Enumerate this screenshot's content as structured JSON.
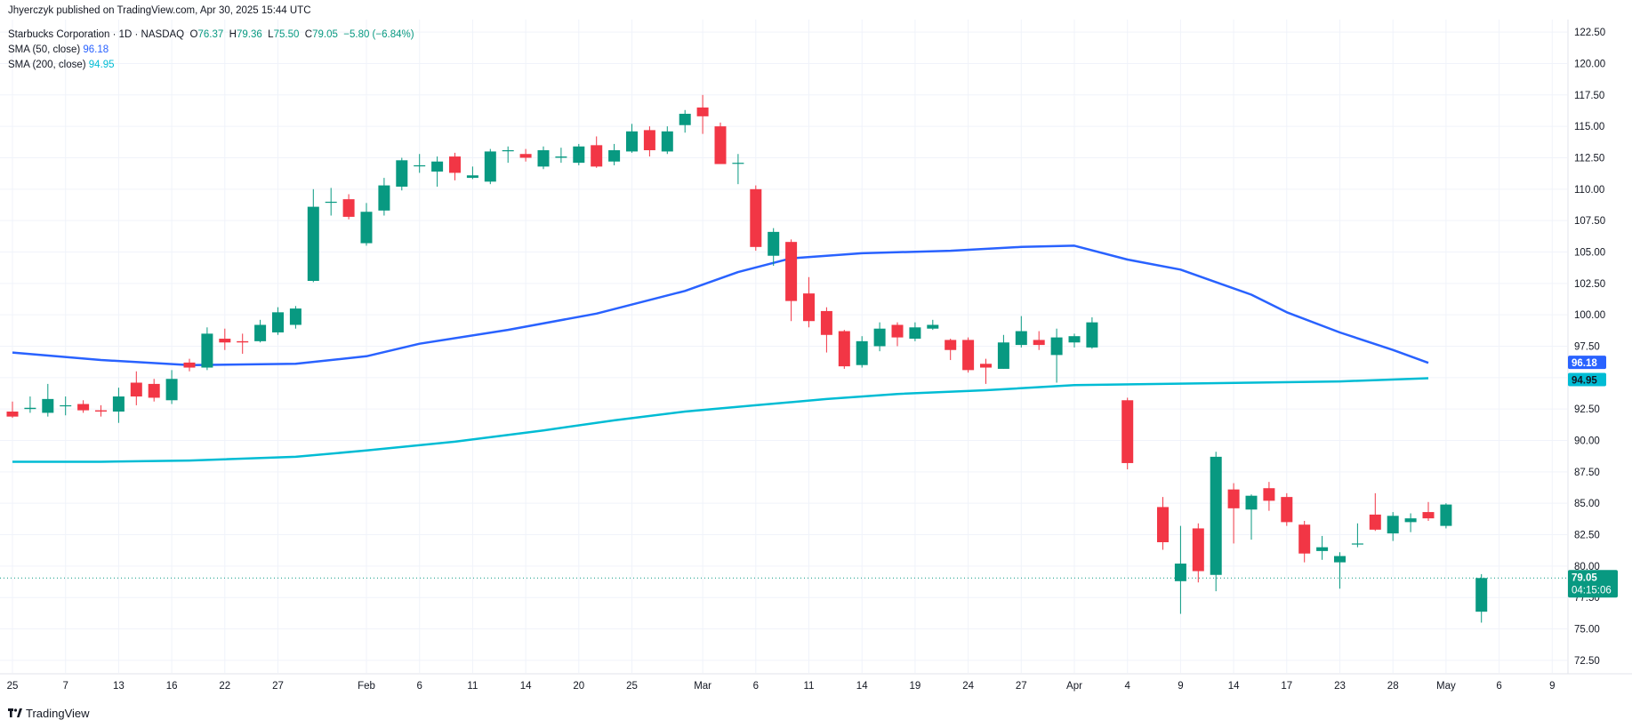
{
  "header": {
    "publisher": "Jhyerczyk published on TradingView.com, Apr 30, 2025 15:44 UTC",
    "symbol_line": "Starbucks Corporation · 1D · NASDAQ",
    "o_label": "O",
    "o_value": "76.37",
    "h_label": "H",
    "h_value": "79.36",
    "l_label": "L",
    "l_value": "75.50",
    "c_label": "C",
    "c_value": "79.05",
    "change": "−5.80 (−6.84%)",
    "sma50_label": "SMA (50, close)",
    "sma50_value": "96.18",
    "sma200_label": "SMA (200, close)",
    "sma200_value": "94.95"
  },
  "footer": {
    "brand": "TradingView"
  },
  "price_tag": {
    "price": "79.05",
    "countdown": "04:15:06"
  },
  "colors": {
    "up": "#089981",
    "down": "#f23645",
    "sma50": "#2962ff",
    "sma200": "#00bcd4",
    "grid": "#f0f3fa"
  },
  "chart_data": {
    "type": "candlestick",
    "y_ticks": [
      72.5,
      75,
      77.5,
      80,
      82.5,
      85,
      87.5,
      90,
      92.5,
      95,
      97.5,
      100,
      102.5,
      105,
      107.5,
      110,
      112.5,
      115,
      117.5,
      120,
      122.5
    ],
    "ylim": [
      71.5,
      123.5
    ],
    "x_ticks": [
      {
        "label": "25",
        "slot": 0
      },
      {
        "label": "7",
        "slot": 3
      },
      {
        "label": "13",
        "slot": 6
      },
      {
        "label": "16",
        "slot": 9
      },
      {
        "label": "22",
        "slot": 12
      },
      {
        "label": "27",
        "slot": 15
      },
      {
        "label": "Feb",
        "slot": 20
      },
      {
        "label": "6",
        "slot": 23
      },
      {
        "label": "11",
        "slot": 26
      },
      {
        "label": "14",
        "slot": 29
      },
      {
        "label": "20",
        "slot": 32
      },
      {
        "label": "25",
        "slot": 35
      },
      {
        "label": "Mar",
        "slot": 39
      },
      {
        "label": "6",
        "slot": 42
      },
      {
        "label": "11",
        "slot": 45
      },
      {
        "label": "14",
        "slot": 48
      },
      {
        "label": "19",
        "slot": 51
      },
      {
        "label": "24",
        "slot": 54
      },
      {
        "label": "27",
        "slot": 57
      },
      {
        "label": "Apr",
        "slot": 60
      },
      {
        "label": "4",
        "slot": 63
      },
      {
        "label": "9",
        "slot": 66
      },
      {
        "label": "14",
        "slot": 69
      },
      {
        "label": "17",
        "slot": 72
      },
      {
        "label": "23",
        "slot": 75
      },
      {
        "label": "28",
        "slot": 78
      },
      {
        "label": "May",
        "slot": 81
      },
      {
        "label": "6",
        "slot": 84
      },
      {
        "label": "9",
        "slot": 87
      }
    ],
    "candles": [
      {
        "slot": 0,
        "o": 92.3,
        "h": 93.1,
        "l": 91.8,
        "c": 91.9
      },
      {
        "slot": 1,
        "o": 92.5,
        "h": 93.5,
        "l": 92.2,
        "c": 92.6
      },
      {
        "slot": 2,
        "o": 92.2,
        "h": 94.5,
        "l": 91.9,
        "c": 93.3
      },
      {
        "slot": 3,
        "o": 92.8,
        "h": 93.5,
        "l": 92.0,
        "c": 92.8
      },
      {
        "slot": 4,
        "o": 92.9,
        "h": 93.2,
        "l": 92.2,
        "c": 92.4
      },
      {
        "slot": 5,
        "o": 92.4,
        "h": 92.8,
        "l": 91.9,
        "c": 92.3
      },
      {
        "slot": 6,
        "o": 92.3,
        "h": 94.2,
        "l": 91.4,
        "c": 93.5
      },
      {
        "slot": 7,
        "o": 94.6,
        "h": 95.5,
        "l": 92.8,
        "c": 93.5
      },
      {
        "slot": 8,
        "o": 94.5,
        "h": 94.9,
        "l": 93.1,
        "c": 93.4
      },
      {
        "slot": 9,
        "o": 93.2,
        "h": 95.6,
        "l": 92.9,
        "c": 94.9
      },
      {
        "slot": 10,
        "o": 96.2,
        "h": 96.5,
        "l": 95.5,
        "c": 95.8
      },
      {
        "slot": 11,
        "o": 95.8,
        "h": 99.0,
        "l": 95.6,
        "c": 98.5
      },
      {
        "slot": 12,
        "o": 98.1,
        "h": 98.9,
        "l": 97.2,
        "c": 97.8
      },
      {
        "slot": 13,
        "o": 97.9,
        "h": 98.5,
        "l": 96.9,
        "c": 97.8
      },
      {
        "slot": 14,
        "o": 97.9,
        "h": 99.6,
        "l": 97.8,
        "c": 99.2
      },
      {
        "slot": 15,
        "o": 98.6,
        "h": 100.6,
        "l": 98.4,
        "c": 100.2
      },
      {
        "slot": 16,
        "o": 99.2,
        "h": 100.7,
        "l": 98.9,
        "c": 100.5
      },
      {
        "slot": 17,
        "o": 102.7,
        "h": 110.0,
        "l": 102.6,
        "c": 108.6
      },
      {
        "slot": 18,
        "o": 109.0,
        "h": 110.1,
        "l": 107.9,
        "c": 109.0
      },
      {
        "slot": 19,
        "o": 109.2,
        "h": 109.6,
        "l": 107.6,
        "c": 107.8
      },
      {
        "slot": 20,
        "o": 105.7,
        "h": 108.9,
        "l": 105.5,
        "c": 108.2
      },
      {
        "slot": 21,
        "o": 108.3,
        "h": 110.9,
        "l": 107.9,
        "c": 110.3
      },
      {
        "slot": 22,
        "o": 110.2,
        "h": 112.5,
        "l": 109.9,
        "c": 112.3
      },
      {
        "slot": 23,
        "o": 111.9,
        "h": 112.8,
        "l": 111.3,
        "c": 111.9
      },
      {
        "slot": 24,
        "o": 111.4,
        "h": 112.6,
        "l": 110.2,
        "c": 112.2
      },
      {
        "slot": 25,
        "o": 112.6,
        "h": 112.9,
        "l": 110.7,
        "c": 111.3
      },
      {
        "slot": 26,
        "o": 110.9,
        "h": 111.8,
        "l": 110.8,
        "c": 111.1
      },
      {
        "slot": 27,
        "o": 110.6,
        "h": 113.2,
        "l": 110.4,
        "c": 113.0
      },
      {
        "slot": 28,
        "o": 113.1,
        "h": 113.4,
        "l": 112.1,
        "c": 113.1
      },
      {
        "slot": 29,
        "o": 112.8,
        "h": 113.2,
        "l": 112.2,
        "c": 112.5
      },
      {
        "slot": 30,
        "o": 111.8,
        "h": 113.4,
        "l": 111.6,
        "c": 113.1
      },
      {
        "slot": 31,
        "o": 112.5,
        "h": 113.3,
        "l": 112.1,
        "c": 112.6
      },
      {
        "slot": 32,
        "o": 112.1,
        "h": 113.6,
        "l": 111.9,
        "c": 113.4
      },
      {
        "slot": 33,
        "o": 113.5,
        "h": 114.2,
        "l": 111.7,
        "c": 111.8
      },
      {
        "slot": 34,
        "o": 112.2,
        "h": 113.6,
        "l": 111.9,
        "c": 113.1
      },
      {
        "slot": 35,
        "o": 113.0,
        "h": 115.2,
        "l": 112.9,
        "c": 114.6
      },
      {
        "slot": 36,
        "o": 114.7,
        "h": 115.0,
        "l": 112.6,
        "c": 113.1
      },
      {
        "slot": 37,
        "o": 113.0,
        "h": 115.0,
        "l": 112.8,
        "c": 114.6
      },
      {
        "slot": 38,
        "o": 115.1,
        "h": 116.3,
        "l": 114.5,
        "c": 116.0
      },
      {
        "slot": 39,
        "o": 116.5,
        "h": 117.5,
        "l": 114.4,
        "c": 115.8
      },
      {
        "slot": 40,
        "o": 115.0,
        "h": 115.3,
        "l": 112.0,
        "c": 112.0
      },
      {
        "slot": 41,
        "o": 112.1,
        "h": 112.8,
        "l": 110.4,
        "c": 112.1
      },
      {
        "slot": 42,
        "o": 110.0,
        "h": 110.3,
        "l": 105.1,
        "c": 105.4
      },
      {
        "slot": 43,
        "o": 104.7,
        "h": 106.9,
        "l": 103.9,
        "c": 106.6
      },
      {
        "slot": 44,
        "o": 105.8,
        "h": 106.0,
        "l": 99.5,
        "c": 101.1
      },
      {
        "slot": 45,
        "o": 101.7,
        "h": 103.0,
        "l": 99.0,
        "c": 99.5
      },
      {
        "slot": 46,
        "o": 100.3,
        "h": 100.6,
        "l": 97.0,
        "c": 98.4
      },
      {
        "slot": 47,
        "o": 98.7,
        "h": 98.8,
        "l": 95.7,
        "c": 95.9
      },
      {
        "slot": 48,
        "o": 96.0,
        "h": 98.3,
        "l": 95.8,
        "c": 97.9
      },
      {
        "slot": 49,
        "o": 97.5,
        "h": 99.4,
        "l": 97.1,
        "c": 98.9
      },
      {
        "slot": 50,
        "o": 99.2,
        "h": 99.4,
        "l": 97.5,
        "c": 98.2
      },
      {
        "slot": 51,
        "o": 98.1,
        "h": 99.4,
        "l": 97.9,
        "c": 99.0
      },
      {
        "slot": 52,
        "o": 98.9,
        "h": 99.6,
        "l": 98.8,
        "c": 99.2
      },
      {
        "slot": 53,
        "o": 98.0,
        "h": 98.1,
        "l": 96.4,
        "c": 97.2
      },
      {
        "slot": 54,
        "o": 98.0,
        "h": 98.2,
        "l": 95.4,
        "c": 95.6
      },
      {
        "slot": 55,
        "o": 96.1,
        "h": 96.5,
        "l": 94.5,
        "c": 95.8
      },
      {
        "slot": 56,
        "o": 95.7,
        "h": 98.4,
        "l": 95.7,
        "c": 97.8
      },
      {
        "slot": 57,
        "o": 97.6,
        "h": 99.9,
        "l": 97.4,
        "c": 98.7
      },
      {
        "slot": 58,
        "o": 98.0,
        "h": 98.7,
        "l": 97.2,
        "c": 97.6
      },
      {
        "slot": 59,
        "o": 96.8,
        "h": 98.9,
        "l": 94.6,
        "c": 98.2
      },
      {
        "slot": 60,
        "o": 97.8,
        "h": 98.5,
        "l": 97.4,
        "c": 98.3
      },
      {
        "slot": 61,
        "o": 97.4,
        "h": 99.8,
        "l": 97.3,
        "c": 99.4
      },
      {
        "slot": 63,
        "o": 93.2,
        "h": 93.4,
        "l": 87.7,
        "c": 88.2
      },
      {
        "slot": 65,
        "o": 84.7,
        "h": 85.5,
        "l": 81.3,
        "c": 81.9
      },
      {
        "slot": 66,
        "o": 78.8,
        "h": 83.2,
        "l": 76.2,
        "c": 80.2
      },
      {
        "slot": 67,
        "o": 83.0,
        "h": 83.4,
        "l": 78.7,
        "c": 79.6
      },
      {
        "slot": 68,
        "o": 79.3,
        "h": 89.1,
        "l": 78.0,
        "c": 88.7
      },
      {
        "slot": 69,
        "o": 86.1,
        "h": 86.6,
        "l": 81.8,
        "c": 84.6
      },
      {
        "slot": 70,
        "o": 84.5,
        "h": 85.7,
        "l": 82.1,
        "c": 85.6
      },
      {
        "slot": 71,
        "o": 86.2,
        "h": 86.7,
        "l": 84.4,
        "c": 85.2
      },
      {
        "slot": 72,
        "o": 85.5,
        "h": 85.8,
        "l": 83.2,
        "c": 83.5
      },
      {
        "slot": 73,
        "o": 83.3,
        "h": 83.6,
        "l": 80.3,
        "c": 81.0
      },
      {
        "slot": 74,
        "o": 81.2,
        "h": 82.4,
        "l": 80.5,
        "c": 81.5
      },
      {
        "slot": 75,
        "o": 80.3,
        "h": 81.1,
        "l": 78.2,
        "c": 80.8
      },
      {
        "slot": 76,
        "o": 81.8,
        "h": 83.4,
        "l": 81.5,
        "c": 81.8
      },
      {
        "slot": 77,
        "o": 84.1,
        "h": 85.8,
        "l": 82.8,
        "c": 82.9
      },
      {
        "slot": 78,
        "o": 82.6,
        "h": 84.3,
        "l": 82.0,
        "c": 84.0
      },
      {
        "slot": 79,
        "o": 83.5,
        "h": 84.2,
        "l": 82.7,
        "c": 83.8
      },
      {
        "slot": 80,
        "o": 84.3,
        "h": 85.1,
        "l": 83.6,
        "c": 83.8
      },
      {
        "slot": 81,
        "o": 83.2,
        "h": 85.0,
        "l": 83.0,
        "c": 84.9
      },
      {
        "slot": 83,
        "o": 76.37,
        "h": 79.36,
        "l": 75.5,
        "c": 79.05
      }
    ],
    "sma50": [
      [
        0,
        97.0
      ],
      [
        5,
        96.4
      ],
      [
        10,
        96.0
      ],
      [
        16,
        96.1
      ],
      [
        20,
        96.7
      ],
      [
        23,
        97.7
      ],
      [
        28,
        98.8
      ],
      [
        33,
        100.1
      ],
      [
        38,
        101.9
      ],
      [
        41,
        103.4
      ],
      [
        44,
        104.5
      ],
      [
        48,
        104.9
      ],
      [
        53,
        105.1
      ],
      [
        57,
        105.4
      ],
      [
        60,
        105.5
      ],
      [
        63,
        104.4
      ],
      [
        66,
        103.6
      ],
      [
        68,
        102.6
      ],
      [
        70,
        101.6
      ],
      [
        72,
        100.2
      ],
      [
        75,
        98.6
      ],
      [
        78,
        97.2
      ],
      [
        80,
        96.18
      ]
    ],
    "sma200": [
      [
        0,
        88.3
      ],
      [
        5,
        88.3
      ],
      [
        10,
        88.4
      ],
      [
        16,
        88.7
      ],
      [
        20,
        89.2
      ],
      [
        25,
        89.9
      ],
      [
        30,
        90.8
      ],
      [
        34,
        91.6
      ],
      [
        38,
        92.3
      ],
      [
        42,
        92.8
      ],
      [
        46,
        93.3
      ],
      [
        50,
        93.7
      ],
      [
        55,
        94.0
      ],
      [
        60,
        94.4
      ],
      [
        65,
        94.5
      ],
      [
        70,
        94.6
      ],
      [
        75,
        94.7
      ],
      [
        80,
        94.95
      ]
    ],
    "last_price": 79.05
  }
}
